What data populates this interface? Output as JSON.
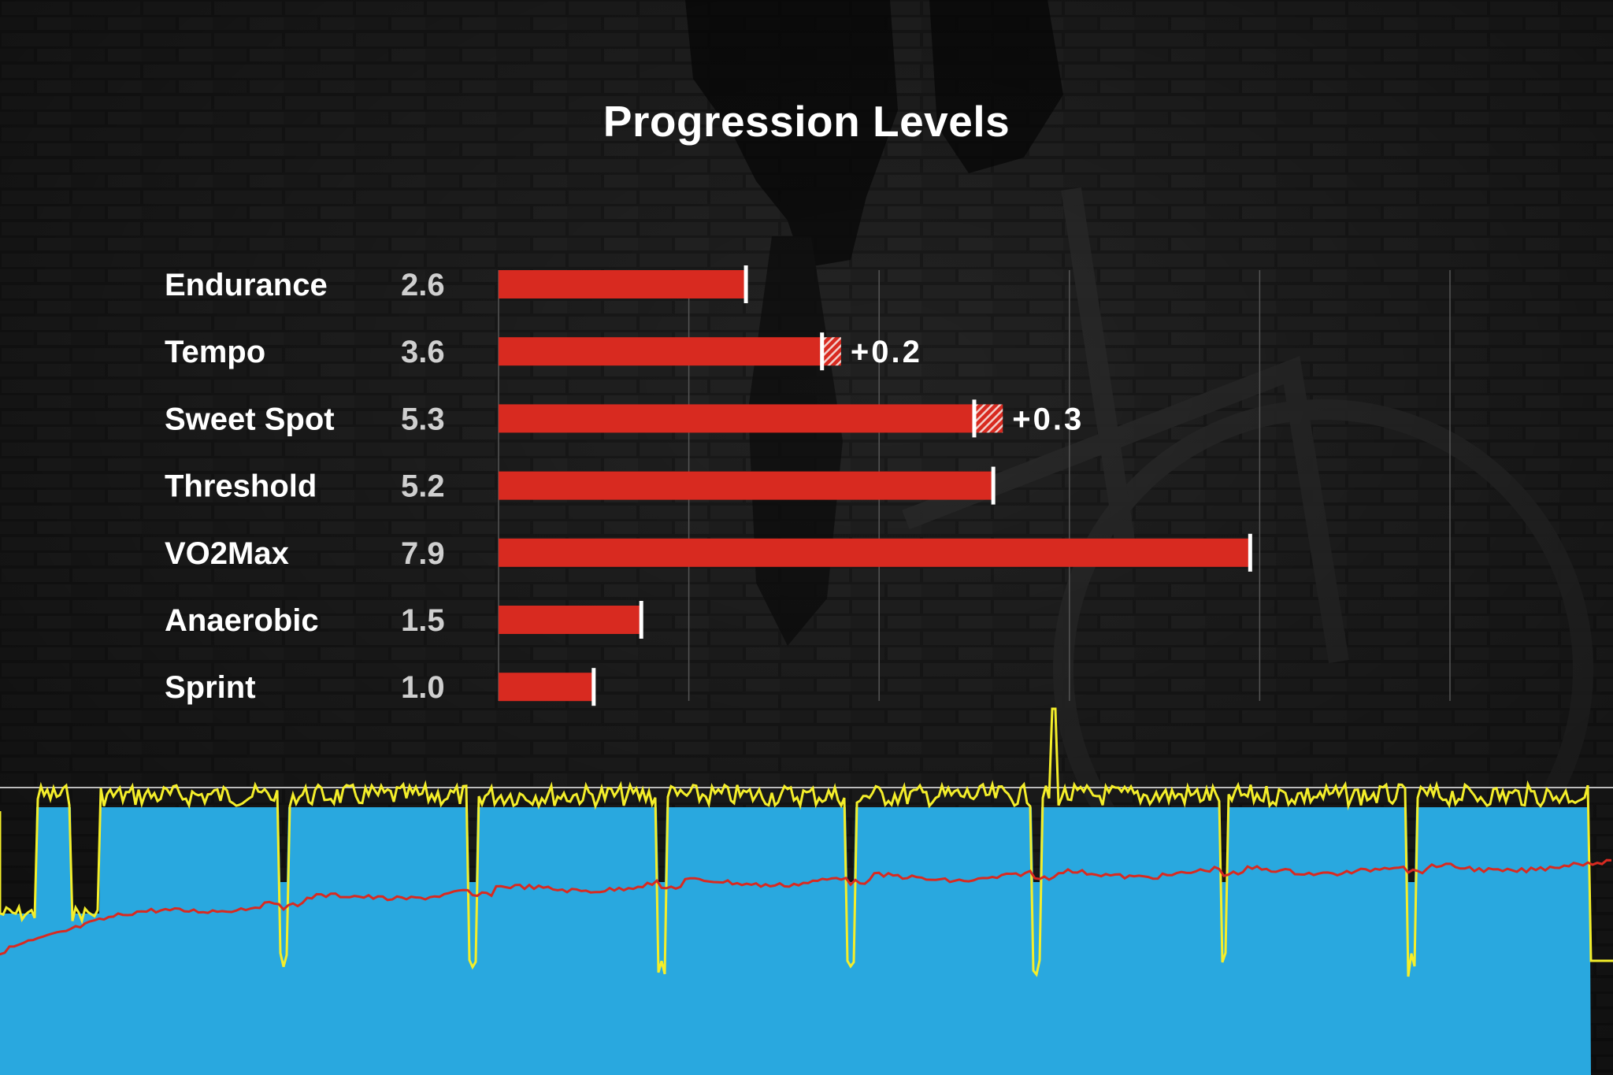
{
  "chart_data": {
    "type": "bar",
    "orientation": "horizontal",
    "title": "Progression Levels",
    "categories": [
      "Endurance",
      "Tempo",
      "Sweet Spot",
      "Threshold",
      "VO2Max",
      "Anaerobic",
      "Sprint"
    ],
    "values": [
      2.6,
      3.6,
      5.3,
      5.2,
      7.9,
      1.5,
      1.0
    ],
    "value_labels": [
      "2.6",
      "3.6",
      "5.3",
      "5.2",
      "7.9",
      "1.5",
      "1.0"
    ],
    "increase": [
      0,
      0.2,
      0.3,
      0,
      0,
      0,
      0
    ],
    "increase_labels": [
      "",
      "+0.2",
      "+0.3",
      "",
      "",
      "",
      ""
    ],
    "xlim": [
      0,
      10
    ],
    "grid_step": 2,
    "grid": true,
    "colors": {
      "bar": "#d82a20",
      "marker": "#ffffff",
      "category_text": "#ffffff",
      "value_text": "#cfcfcf",
      "gridline": "#555555"
    }
  },
  "workout_graph": {
    "colors": {
      "target_area": "#29a8df",
      "power_line": "#f4ee2a",
      "heart_rate_line": "#d82a20",
      "baseline": "#bdbdbd"
    }
  }
}
